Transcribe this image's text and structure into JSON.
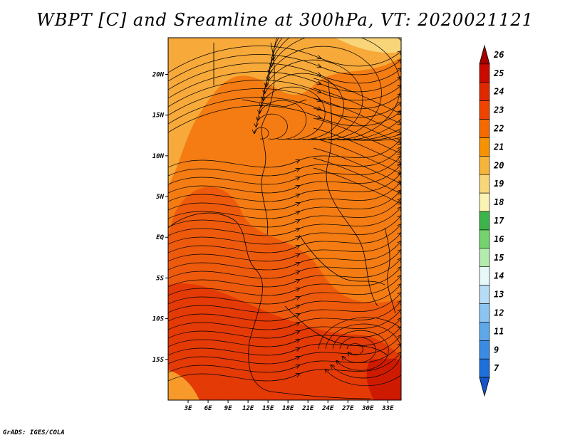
{
  "title": "WBPT [C] and Sreamline at 300hPa, VT: 2020021121",
  "footer": "GrADS: IGES/COLA",
  "map": {
    "lat_labels": [
      "20N",
      "15N",
      "10N",
      "5N",
      "EQ",
      "5S",
      "10S",
      "15S"
    ],
    "lat_values": [
      20,
      15,
      10,
      5,
      0,
      -5,
      -10,
      -15
    ],
    "lon_labels": [
      "3E",
      "6E",
      "9E",
      "12E",
      "15E",
      "18E",
      "21E",
      "24E",
      "27E",
      "30E",
      "33E"
    ],
    "lon_values": [
      3,
      6,
      9,
      12,
      15,
      18,
      21,
      24,
      27,
      30,
      33
    ],
    "lat_range": [
      -20,
      24.5
    ],
    "lon_range": [
      0,
      35
    ]
  },
  "colorbar": {
    "labels": [
      "26",
      "25",
      "24",
      "23",
      "22",
      "21",
      "20",
      "19",
      "18",
      "17",
      "16",
      "15",
      "14",
      "13",
      "12",
      "11",
      "9",
      "7"
    ],
    "colors": [
      "#a50000",
      "#c80a00",
      "#e02800",
      "#ee4400",
      "#f56a00",
      "#f79200",
      "#f7b43a",
      "#f8d77a",
      "#fbf3b4",
      "#3cb44b",
      "#74d46e",
      "#b3ebae",
      "#e6f8f9",
      "#b6dcf6",
      "#8cc4f2",
      "#5ea8ea",
      "#3a8be3",
      "#1e6fd9",
      "#1456c8"
    ]
  }
}
